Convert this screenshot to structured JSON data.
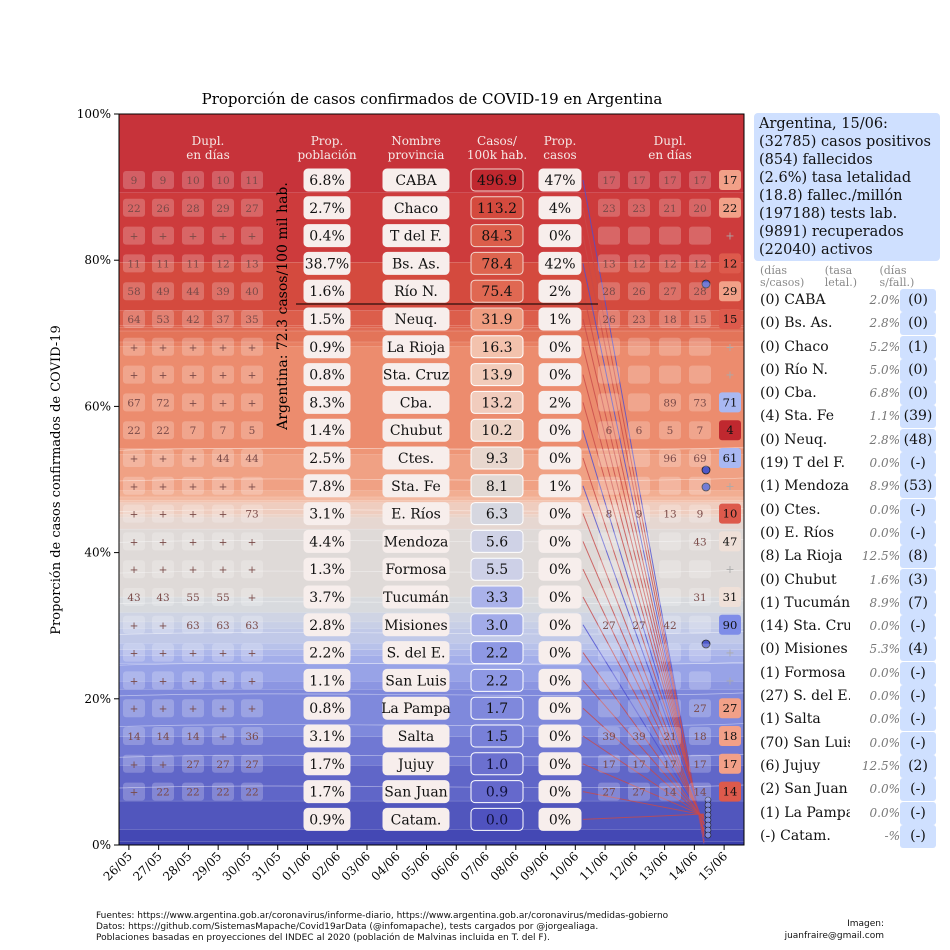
{
  "title": "Proporción de casos confirmados de COVID-19 en Argentina",
  "ylabel": "Proporción de casos confirmados de COVID-19",
  "vertical_label": "Argentina: 72.3 casos/100 mil hab.",
  "headers": {
    "dupl_left": [
      "Dupl.",
      "en días"
    ],
    "prop_poblacion": [
      "Prop.",
      "población"
    ],
    "nombre_provincia": [
      "Nombre",
      "provincia"
    ],
    "casos_100k": [
      "Casos/",
      "100k hab."
    ],
    "prop_casos": [
      "Prop.",
      "casos"
    ],
    "dupl_right": [
      "Dupl.",
      "en días"
    ]
  },
  "chart_data": {
    "type": "area",
    "title": "Proporción de casos confirmados de COVID-19 en Argentina",
    "ylabel": "Proporción de casos confirmados de COVID-19",
    "ylim": [
      0,
      100
    ],
    "y_ticks": [
      "0%",
      "20%",
      "40%",
      "60%",
      "80%",
      "100%"
    ],
    "x": [
      "26/05",
      "27/05",
      "28/05",
      "29/05",
      "30/05",
      "31/05",
      "01/06",
      "02/06",
      "03/06",
      "04/06",
      "05/06",
      "06/06",
      "07/06",
      "08/06",
      "09/06",
      "10/06",
      "11/06",
      "12/06",
      "13/06",
      "14/06",
      "15/06"
    ],
    "boundaries_pct": [
      100,
      89.2,
      79.7,
      79.7,
      73.1,
      73.1,
      73.1,
      71.1,
      70.8,
      70.3,
      68.8,
      68.2,
      54.2,
      53.4,
      48.5,
      47.6,
      47.1,
      46.8,
      45.2,
      44.8,
      43.2,
      33.9,
      31.8,
      30.5,
      29.6,
      27.6,
      26.7,
      25.9,
      24.8,
      22.4,
      21.3,
      14.8,
      10.9,
      6.0,
      2.1,
      0.5,
      0
    ],
    "provinces": [
      {
        "name": "CABA",
        "pop": "6.8%",
        "per100k": "496.9",
        "cases": "47%",
        "color": "#c0282f"
      },
      {
        "name": "Chaco",
        "pop": "2.7%",
        "per100k": "113.2",
        "cases": "4%",
        "color": "#d44a3e"
      },
      {
        "name": "T del F.",
        "pop": "0.4%",
        "per100k": "84.3",
        "cases": "0%",
        "color": "#db5d4a"
      },
      {
        "name": "Bs. As.",
        "pop": "38.7%",
        "per100k": "78.4",
        "cases": "42%",
        "color": "#de644f"
      },
      {
        "name": "Río N.",
        "pop": "1.6%",
        "per100k": "75.4",
        "cases": "2%",
        "color": "#e06852"
      },
      {
        "name": "Neuq.",
        "pop": "1.5%",
        "per100k": "31.9",
        "cases": "1%",
        "color": "#ef9c80"
      },
      {
        "name": "La Rioja",
        "pop": "0.9%",
        "per100k": "16.3",
        "cases": "0%",
        "color": "#f3c2ad"
      },
      {
        "name": "Sta. Cruz",
        "pop": "0.8%",
        "per100k": "13.9",
        "cases": "0%",
        "color": "#f2cbb9"
      },
      {
        "name": "Cba.",
        "pop": "8.3%",
        "per100k": "13.2",
        "cases": "2%",
        "color": "#f1ccbd"
      },
      {
        "name": "Chubut",
        "pop": "1.4%",
        "per100k": "10.2",
        "cases": "0%",
        "color": "#eed5c8"
      },
      {
        "name": "Ctes.",
        "pop": "2.5%",
        "per100k": "9.3",
        "cases": "0%",
        "color": "#e8d7ce"
      },
      {
        "name": "Sta. Fe",
        "pop": "7.8%",
        "per100k": "8.1",
        "cases": "1%",
        "color": "#e2d9d4"
      },
      {
        "name": "E. Ríos",
        "pop": "3.1%",
        "per100k": "6.3",
        "cases": "0%",
        "color": "#d6d7e0"
      },
      {
        "name": "Mendoza",
        "pop": "4.4%",
        "per100k": "5.6",
        "cases": "0%",
        "color": "#cfd2e6"
      },
      {
        "name": "Formosa",
        "pop": "1.3%",
        "per100k": "5.5",
        "cases": "0%",
        "color": "#cdd0e7"
      },
      {
        "name": "Tucumán",
        "pop": "3.7%",
        "per100k": "3.3",
        "cases": "0%",
        "color": "#aab2ea"
      },
      {
        "name": "Misiones",
        "pop": "2.8%",
        "per100k": "3.0",
        "cases": "0%",
        "color": "#a2abe9"
      },
      {
        "name": "S. del E.",
        "pop": "2.2%",
        "per100k": "2.2",
        "cases": "0%",
        "color": "#8e98e4"
      },
      {
        "name": "San Luis",
        "pop": "1.1%",
        "per100k": "2.2",
        "cases": "0%",
        "color": "#8e98e4"
      },
      {
        "name": "La Pampa",
        "pop": "0.8%",
        "per100k": "1.7",
        "cases": "0%",
        "color": "#7f88dc"
      },
      {
        "name": "Salta",
        "pop": "3.1%",
        "per100k": "1.5",
        "cases": "0%",
        "color": "#7880d8"
      },
      {
        "name": "Jujuy",
        "pop": "1.7%",
        "per100k": "1.0",
        "cases": "0%",
        "color": "#6b70cf"
      },
      {
        "name": "San Juan",
        "pop": "1.7%",
        "per100k": "0.9",
        "cases": "0%",
        "color": "#6569cc"
      },
      {
        "name": "Catam.",
        "pop": "0.9%",
        "per100k": "0.0",
        "cases": "0%",
        "color": "#4f52bf"
      }
    ],
    "dupl_left": [
      [
        "9",
        "9",
        "10",
        "10",
        "11"
      ],
      [
        "22",
        "26",
        "28",
        "29",
        "27"
      ],
      [
        "",
        "",
        "",
        "",
        ""
      ],
      [
        "11",
        "11",
        "11",
        "12",
        "13"
      ],
      [
        "58",
        "49",
        "44",
        "39",
        "40"
      ],
      [
        "64",
        "53",
        "42",
        "37",
        "35"
      ],
      [
        "",
        "",
        "",
        "",
        ""
      ],
      [
        "",
        "",
        "",
        "",
        ""
      ],
      [
        "67",
        "72",
        "",
        "",
        ""
      ],
      [
        "22",
        "22",
        "7",
        "7",
        "5"
      ],
      [
        "",
        "",
        "",
        "44",
        "44"
      ],
      [
        "",
        "",
        "",
        "",
        ""
      ],
      [
        "",
        "",
        "",
        "",
        "73"
      ],
      [
        "",
        "",
        "",
        "",
        ""
      ],
      [
        "",
        "",
        "",
        "",
        ""
      ],
      [
        "43",
        "43",
        "55",
        "55",
        ""
      ],
      [
        "",
        "",
        "63",
        "63",
        "63"
      ],
      [
        "",
        "",
        "",
        "",
        ""
      ],
      [
        "",
        "",
        "",
        "",
        ""
      ],
      [
        "",
        "",
        "",
        "",
        ""
      ],
      [
        "14",
        "14",
        "14",
        "",
        "36"
      ],
      [
        "",
        "",
        "27",
        "27",
        "27"
      ],
      [
        "",
        "22",
        "22",
        "22",
        "22"
      ]
    ],
    "dupl_right": [
      [
        "17",
        "17",
        "17",
        "17",
        "17"
      ],
      [
        "23",
        "23",
        "21",
        "20",
        "22"
      ],
      [
        "",
        "",
        "",
        "",
        "+"
      ],
      [
        "13",
        "12",
        "12",
        "12",
        "12"
      ],
      [
        "28",
        "26",
        "27",
        "28",
        "29"
      ],
      [
        "26",
        "23",
        "18",
        "15",
        "15"
      ],
      [
        "",
        "",
        "",
        "",
        "+"
      ],
      [
        "",
        "",
        "",
        "",
        "+"
      ],
      [
        "",
        "",
        "89",
        "73",
        "71"
      ],
      [
        "6",
        "6",
        "5",
        "7",
        "4"
      ],
      [
        "",
        "",
        "96",
        "69",
        "61"
      ],
      [
        "",
        "",
        "",
        "",
        "+"
      ],
      [
        "8",
        "9",
        "13",
        "9",
        "10"
      ],
      [
        "",
        "",
        "",
        "43",
        "47"
      ],
      [
        "",
        "",
        "",
        "",
        ""
      ],
      [
        "",
        "",
        "",
        "31",
        "31"
      ],
      [
        "27",
        "27",
        "42",
        "",
        "90"
      ],
      [
        "",
        "",
        "",
        "",
        "+"
      ],
      [
        "",
        "",
        "",
        "",
        "+"
      ],
      [
        "",
        "",
        "",
        "27",
        "27"
      ],
      [
        "39",
        "39",
        "21",
        "18",
        "18"
      ],
      [
        "17",
        "17",
        "17",
        "17",
        "17"
      ],
      [
        "27",
        "27",
        "14",
        "14",
        "14"
      ]
    ]
  },
  "sidebar": {
    "summary": [
      "Argentina, 15/06:",
      "(32785) casos positivos",
      "(854) fallecidos",
      "(2.6%) tasa letalidad",
      "(18.8) fallec./millón",
      "(197188) tests lab.",
      "(9891) recuperados",
      "(22040) activos"
    ],
    "col_heads": [
      "(días s/casos)",
      "(tasa letal.)",
      "(días s/fall.)"
    ],
    "rows": [
      {
        "name": "(0) CABA",
        "rate": "2.0%",
        "fall": "(0)"
      },
      {
        "name": "(0) Bs. As.",
        "rate": "2.8%",
        "fall": "(0)"
      },
      {
        "name": "(0) Chaco",
        "rate": "5.2%",
        "fall": "(1)"
      },
      {
        "name": "(0) Río N.",
        "rate": "5.0%",
        "fall": "(0)"
      },
      {
        "name": "(0) Cba.",
        "rate": "6.8%",
        "fall": "(0)"
      },
      {
        "name": "(4) Sta. Fe",
        "rate": "1.1%",
        "fall": "(39)"
      },
      {
        "name": "(0) Neuq.",
        "rate": "2.8%",
        "fall": "(48)"
      },
      {
        "name": "(19) T del F.",
        "rate": "0.0%",
        "fall": "(-)"
      },
      {
        "name": "(1) Mendoza",
        "rate": "8.9%",
        "fall": "(53)"
      },
      {
        "name": "(0) Ctes.",
        "rate": "0.0%",
        "fall": "(-)"
      },
      {
        "name": "(0) E. Ríos",
        "rate": "0.0%",
        "fall": "(-)"
      },
      {
        "name": "(8) La Rioja",
        "rate": "12.5%",
        "fall": "(8)"
      },
      {
        "name": "(0) Chubut",
        "rate": "1.6%",
        "fall": "(3)"
      },
      {
        "name": "(1) Tucumán",
        "rate": "8.9%",
        "fall": "(7)"
      },
      {
        "name": "(14) Sta. Cruz",
        "rate": "0.0%",
        "fall": "(-)"
      },
      {
        "name": "(0) Misiones",
        "rate": "5.3%",
        "fall": "(4)"
      },
      {
        "name": "(1) Formosa",
        "rate": "0.0%",
        "fall": "(-)"
      },
      {
        "name": "(27) S. del E.",
        "rate": "0.0%",
        "fall": "(-)"
      },
      {
        "name": "(1) Salta",
        "rate": "0.0%",
        "fall": "(-)"
      },
      {
        "name": "(70) San Luis",
        "rate": "0.0%",
        "fall": "(-)"
      },
      {
        "name": "(6) Jujuy",
        "rate": "12.5%",
        "fall": "(2)"
      },
      {
        "name": "(2) San Juan",
        "rate": "0.0%",
        "fall": "(-)"
      },
      {
        "name": "(1) La Pampa",
        "rate": "0.0%",
        "fall": "(-)"
      },
      {
        "name": "(-) Catam.",
        "rate": "-%",
        "fall": "(-)"
      }
    ]
  },
  "footer": [
    "Fuentes: https://www.argentina.gob.ar/coronavirus/informe-diario, https://www.argentina.gob.ar/coronavirus/medidas-gobierno",
    "Datos: https://github.com/SistemasMapache/Covid19arData (@infomapache), tests cargados por @jorgealiaga.",
    "Poblaciones basadas en proyecciones del INDEC al 2020 (población de Malvinas incluida en T. del F)."
  ],
  "credit": [
    "Imagen:",
    "juanfraire@gmail.com"
  ]
}
